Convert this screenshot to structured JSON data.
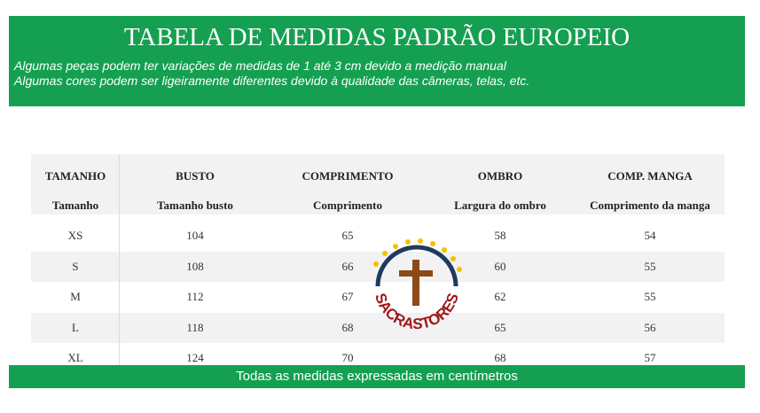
{
  "header": {
    "title": "TABELA DE MEDIDAS PADRÃO EUROPEIO",
    "notes": [
      "Algumas peças podem ter variações de medidas de 1 até 3 cm devido a medição manual",
      "Algumas cores podem ser ligeiramente diferentes devido à qualidade das câmeras, telas, etc."
    ]
  },
  "table": {
    "columns": [
      {
        "name": "TAMANHO",
        "sub": "Tamanho"
      },
      {
        "name": "BUSTO",
        "sub": "Tamanho busto"
      },
      {
        "name": "COMPRIMENTO",
        "sub": "Comprimento"
      },
      {
        "name": "OMBRO",
        "sub": "Largura do ombro"
      },
      {
        "name": "COMP. MANGA",
        "sub": "Comprimento da manga"
      }
    ],
    "rows": [
      [
        "XS",
        104,
        65,
        58,
        54
      ],
      [
        "S",
        108,
        66,
        60,
        55
      ],
      [
        "M",
        112,
        67,
        62,
        55
      ],
      [
        "L",
        118,
        68,
        65,
        56
      ],
      [
        "XL",
        124,
        70,
        68,
        57
      ]
    ]
  },
  "logo": "SACRASTORES",
  "footer": "Todas as medidas expressadas em centímetros"
}
